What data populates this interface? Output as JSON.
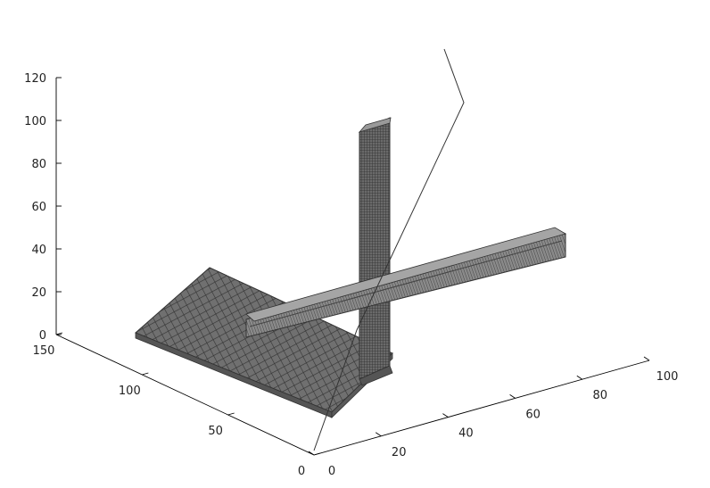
{
  "chart_data": {
    "type": "3d-voxel",
    "title": "",
    "xlabel": "",
    "ylabel": "",
    "zlabel": "",
    "x_ticks": [
      "0",
      "20",
      "40",
      "60",
      "80",
      "100"
    ],
    "y_ticks": [
      "0",
      "50",
      "100",
      "150"
    ],
    "z_ticks": [
      "0",
      "20",
      "40",
      "60",
      "80",
      "100",
      "120"
    ],
    "xlim": [
      0,
      100
    ],
    "ylim": [
      0,
      150
    ],
    "zlim": [
      0,
      120
    ],
    "grid": false,
    "colors": {
      "block_fill": "#6e6e6e",
      "block_top": "#9a9a9a",
      "block_edge": "#3a3a3a"
    },
    "objects": [
      {
        "name": "sloped-plate",
        "shape": "slab"
      },
      {
        "name": "vertical-column",
        "shape": "column",
        "top_z": 100
      },
      {
        "name": "horizontal-beam",
        "shape": "beam"
      },
      {
        "name": "thin-wire",
        "shape": "line"
      }
    ]
  }
}
